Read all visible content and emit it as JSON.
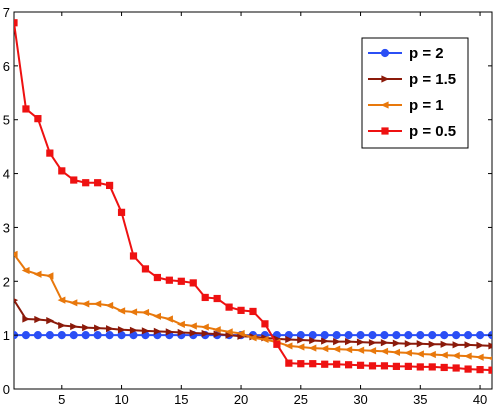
{
  "chart_data": {
    "type": "line",
    "title": "",
    "xlabel": "",
    "ylabel": "",
    "xlim": [
      1,
      41
    ],
    "ylim": [
      0,
      7
    ],
    "xticks": [
      5,
      10,
      15,
      20,
      25,
      30,
      35,
      40
    ],
    "yticks": [
      0,
      1,
      2,
      3,
      4,
      5,
      6,
      7
    ],
    "grid": false,
    "legend_position": "top-right",
    "x": [
      1,
      2,
      3,
      4,
      5,
      6,
      7,
      8,
      9,
      10,
      11,
      12,
      13,
      14,
      15,
      16,
      17,
      18,
      19,
      20,
      21,
      22,
      23,
      24,
      25,
      26,
      27,
      28,
      29,
      30,
      31,
      32,
      33,
      34,
      35,
      36,
      37,
      38,
      39,
      40,
      41
    ],
    "series": [
      {
        "name": "p = 2",
        "color": "#2b4ff5",
        "marker": "circle",
        "values": [
          1,
          1,
          1,
          1,
          1,
          1,
          1,
          1,
          1,
          1,
          1,
          1,
          1,
          1,
          1,
          1,
          1,
          1,
          1,
          1,
          1,
          1,
          1,
          1,
          1,
          1,
          1,
          1,
          1,
          1,
          1,
          1,
          1,
          1,
          1,
          1,
          1,
          1,
          1,
          1,
          1
        ]
      },
      {
        "name": "p = 1.5",
        "color": "#8b1a0a",
        "marker": "triangle-right",
        "values": [
          1.65,
          1.3,
          1.29,
          1.27,
          1.18,
          1.16,
          1.14,
          1.13,
          1.12,
          1.1,
          1.09,
          1.08,
          1.07,
          1.06,
          1.05,
          1.04,
          1.03,
          1.02,
          1.0,
          0.98,
          0.97,
          0.95,
          0.93,
          0.92,
          0.91,
          0.9,
          0.89,
          0.88,
          0.88,
          0.87,
          0.86,
          0.86,
          0.85,
          0.84,
          0.84,
          0.83,
          0.83,
          0.82,
          0.82,
          0.81,
          0.8
        ]
      },
      {
        "name": "p = 1",
        "color": "#e8780c",
        "marker": "triangle-left",
        "values": [
          2.5,
          2.2,
          2.13,
          2.1,
          1.65,
          1.6,
          1.58,
          1.58,
          1.55,
          1.45,
          1.43,
          1.42,
          1.35,
          1.3,
          1.2,
          1.17,
          1.15,
          1.1,
          1.06,
          1.03,
          0.95,
          0.92,
          0.87,
          0.8,
          0.78,
          0.76,
          0.75,
          0.74,
          0.73,
          0.72,
          0.71,
          0.7,
          0.68,
          0.67,
          0.65,
          0.64,
          0.63,
          0.62,
          0.61,
          0.59,
          0.57
        ]
      },
      {
        "name": "p = 0.5",
        "color": "#ee1111",
        "marker": "square",
        "values": [
          6.8,
          5.2,
          5.02,
          4.38,
          4.05,
          3.88,
          3.83,
          3.83,
          3.78,
          3.28,
          2.47,
          2.23,
          2.07,
          2.02,
          2.0,
          1.97,
          1.7,
          1.68,
          1.52,
          1.46,
          1.44,
          1.21,
          0.83,
          0.48,
          0.47,
          0.47,
          0.46,
          0.46,
          0.45,
          0.44,
          0.43,
          0.43,
          0.42,
          0.42,
          0.41,
          0.41,
          0.4,
          0.39,
          0.37,
          0.36,
          0.35
        ]
      }
    ]
  }
}
